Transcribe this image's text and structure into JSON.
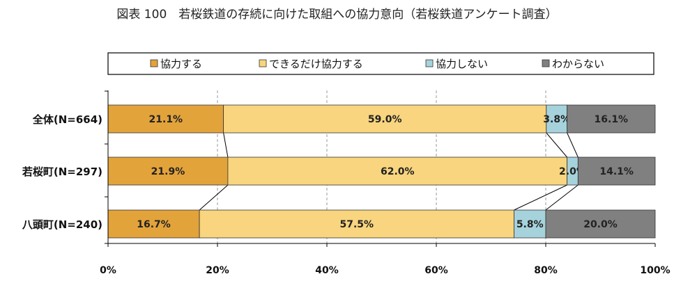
{
  "chart_data": {
    "type": "bar",
    "orientation": "horizontal",
    "stacked": "percent",
    "title": "図表 100　若桜鉄道の存続に向けた取組への協力意向（若桜鉄道アンケート調査）",
    "categories": [
      "全体(N=664)",
      "若桜町(N=297)",
      "八頭町(N=240)"
    ],
    "series": [
      {
        "name": "協力する",
        "color": "#E3A33B",
        "values": [
          21.1,
          21.9,
          16.7
        ],
        "labels": [
          "21.1%",
          "21.9%",
          "16.7%"
        ]
      },
      {
        "name": "できるだけ協力する",
        "color": "#F8D57E",
        "values": [
          59.0,
          62.0,
          57.5
        ],
        "labels": [
          "59.0%",
          "62.0%",
          "57.5%"
        ]
      },
      {
        "name": "協力しない",
        "color": "#A6D2DC",
        "values": [
          3.8,
          2.0,
          5.8
        ],
        "labels": [
          "3.8%",
          "2.0%",
          "5.8%"
        ]
      },
      {
        "name": "わからない",
        "color": "#808080",
        "values": [
          16.1,
          14.1,
          20.0
        ],
        "labels": [
          "16.1%",
          "14.1%",
          "20.0%"
        ]
      }
    ],
    "xlim": [
      0,
      100
    ],
    "x_ticks": [
      "0%",
      "20%",
      "40%",
      "60%",
      "80%",
      "100%"
    ],
    "grid": "vertical dashed",
    "legend_position": "top",
    "series_connector_lines": true
  }
}
